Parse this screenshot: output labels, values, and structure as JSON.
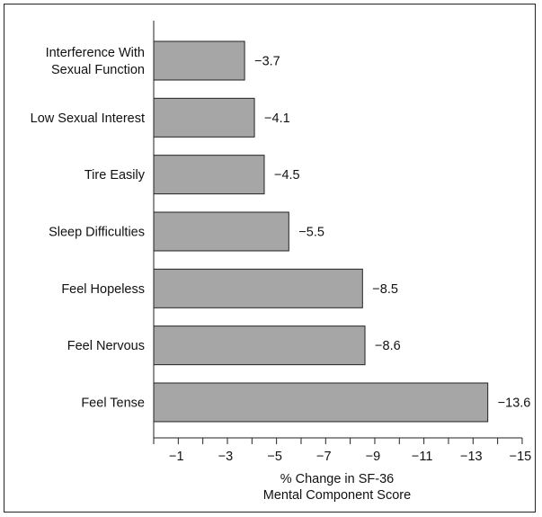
{
  "chart_data": {
    "type": "bar",
    "orientation": "horizontal",
    "categories": [
      [
        "Interference With",
        "Sexual Function"
      ],
      [
        "Low Sexual Interest"
      ],
      [
        "Tire Easily"
      ],
      [
        "Sleep Difficulties"
      ],
      [
        "Feel Hopeless"
      ],
      [
        "Feel Nervous"
      ],
      [
        "Feel Tense"
      ]
    ],
    "values": [
      -3.7,
      -4.1,
      -4.5,
      -5.5,
      -8.5,
      -8.6,
      -13.6
    ],
    "data_labels": [
      "−3.7",
      "−4.1",
      "−4.5",
      "−5.5",
      "−8.5",
      "−8.6",
      "−13.6"
    ],
    "xlabel": [
      "% Change in SF-36",
      "Mental Component Score"
    ],
    "xlim": [
      0,
      -15
    ],
    "xticks": [
      -1,
      -3,
      -5,
      -7,
      -9,
      -11,
      -13,
      -15
    ],
    "xtick_labels": [
      "−1",
      "−3",
      "−5",
      "−7",
      "−9",
      "−11",
      "−13",
      "−15"
    ],
    "bar_color": "#a6a6a6",
    "grid": false,
    "legend": "none"
  }
}
